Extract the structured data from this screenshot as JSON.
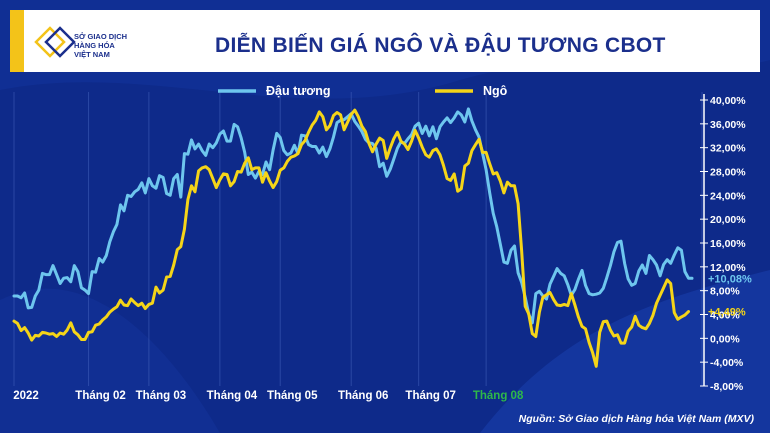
{
  "header": {
    "title": "DIỄN BIẾN GIÁ NGÔ VÀ ĐẬU TƯƠNG CBOT",
    "logo_text_1": "SỞ GIAO DỊCH",
    "logo_text_2": "HÀNG HÓA",
    "logo_text_3": "VIỆT NAM"
  },
  "source": "Nguồn: Sở Giao dịch Hàng hóa Việt Nam (MXV)",
  "colors": {
    "background": "#0e2a8a",
    "soybean": "#6ec6ee",
    "corn": "#f5d518",
    "accent_yellow": "#f3c319",
    "highlight_month": "#2eb84a"
  },
  "chart_data": {
    "type": "line",
    "title": "DIỄN BIẾN GIÁ NGÔ VÀ ĐẬU TƯƠNG CBOT",
    "legend_position": "top",
    "grid": "vertical",
    "ylim": [
      -8,
      40
    ],
    "y_ticks": [
      "40,00%",
      "36,00%",
      "32,00%",
      "28,00%",
      "24,00%",
      "20,00%",
      "16,00%",
      "12,00%",
      "8,00%",
      "4,00%",
      "0,00%",
      "-4,00%",
      "-8,00%"
    ],
    "x_labels": [
      "2022",
      "Tháng 02",
      "Tháng 03",
      "Tháng 04",
      "Tháng 05",
      "Tháng 06",
      "Tháng 07",
      "Tháng 08"
    ],
    "x_label_positions": [
      0,
      21,
      38,
      58,
      75,
      95,
      114,
      133
    ],
    "highlight_label": "Tháng 08",
    "end_labels": [
      {
        "series": "Đậu tương",
        "text": "+10,08%",
        "value": 10.08
      },
      {
        "series": "Ngô",
        "text": "+4,49%",
        "value": 4.49
      }
    ],
    "series": [
      {
        "name": "Đậu tương",
        "values": [
          7.1,
          7.1,
          6.8,
          7.6,
          5.1,
          5.2,
          7.1,
          8.1,
          10.9,
          10.7,
          10.7,
          12.2,
          10.7,
          9.2,
          10.1,
          10.2,
          9.5,
          12.2,
          11.2,
          8.5,
          8.1,
          7.5,
          11.2,
          11.1,
          13.4,
          12.8,
          13.9,
          16.2,
          17.9,
          19.1,
          22.4,
          21.4,
          24.0,
          23.8,
          24.6,
          25.0,
          26.1,
          24.4,
          26.8,
          25.6,
          25.2,
          27.3,
          27.0,
          24.3,
          24.0,
          26.8,
          27.5,
          23.7,
          31.0,
          30.9,
          33.3,
          31.8,
          32.6,
          31.5,
          30.7,
          32.6,
          32.0,
          32.8,
          34.3,
          34.8,
          33.1,
          33.1,
          35.9,
          35.5,
          33.6,
          31.2,
          27.5,
          27.9,
          26.9,
          28.0,
          27.5,
          29.6,
          28.3,
          31.6,
          34.4,
          33.7,
          31.5,
          30.8,
          31.1,
          32.4,
          31.0,
          34.1,
          34.0,
          32.5,
          32.2,
          32.2,
          31.1,
          32.1,
          30.5,
          31.8,
          33.8,
          36.2,
          36.6,
          36.7,
          37.2,
          37.7,
          36.4,
          35.6,
          34.7,
          33.4,
          32.8,
          32.7,
          31.9,
          28.8,
          29.4,
          27.2,
          28.4,
          30.1,
          31.9,
          33.0,
          32.7,
          33.5,
          34.2,
          35.6,
          36.1,
          34.4,
          35.6,
          34.0,
          35.5,
          33.5,
          35.5,
          36.3,
          37.0,
          36.2,
          37.0,
          38.0,
          37.5,
          36.3,
          38.5,
          36.5,
          35.0,
          33.8,
          31.0,
          28.3,
          24.4,
          21.0,
          18.7,
          15.8,
          12.8,
          12.6,
          14.8,
          15.5,
          11.0,
          9.4,
          6.9,
          4.1,
          2.6,
          7.5,
          7.9,
          7.1,
          6.6,
          9.1,
          10.4,
          11.7,
          10.9,
          10.5,
          9.0,
          7.2,
          8.2,
          9.9,
          11.4,
          8.9,
          7.5,
          7.3,
          7.4,
          7.6,
          8.4,
          10.2,
          12.2,
          14.5,
          16.1,
          16.3,
          12.6,
          10.0,
          8.9,
          9.2,
          11.3,
          12.3,
          10.9,
          13.9,
          13.2,
          12.3,
          10.5,
          12.4,
          13.2,
          12.6,
          14.0,
          15.2,
          14.8,
          11.2,
          10.1,
          10.08
        ]
      },
      {
        "name": "Ngô",
        "values": [
          2.9,
          2.5,
          1.3,
          1.8,
          0.9,
          -0.3,
          0.5,
          0.4,
          1.0,
          0.9,
          0.7,
          0.8,
          0.3,
          0.9,
          0.7,
          1.4,
          2.6,
          1.1,
          0.6,
          -0.2,
          -0.2,
          1.0,
          1.1,
          2.2,
          2.4,
          3.1,
          3.6,
          4.4,
          4.9,
          5.3,
          6.4,
          5.6,
          5.5,
          6.6,
          6.0,
          5.5,
          5.9,
          5.0,
          5.7,
          5.9,
          8.6,
          7.6,
          8.1,
          10.3,
          10.4,
          12.3,
          14.9,
          15.4,
          18.3,
          23.3,
          25.6,
          24.6,
          28.1,
          28.6,
          28.8,
          28.3,
          26.8,
          25.3,
          26.6,
          27.6,
          27.5,
          25.6,
          26.3,
          28.0,
          27.9,
          29.4,
          30.3,
          28.3,
          28.6,
          28.6,
          26.2,
          27.8,
          26.4,
          25.3,
          26.3,
          28.2,
          28.6,
          29.7,
          30.4,
          30.6,
          31.0,
          32.5,
          33.2,
          34.6,
          35.8,
          36.6,
          38.0,
          37.2,
          35.0,
          35.7,
          37.4,
          37.9,
          37.5,
          35.0,
          36.3,
          37.6,
          38.3,
          37.2,
          35.6,
          34.7,
          32.7,
          31.3,
          32.6,
          33.6,
          33.2,
          30.2,
          32.0,
          33.5,
          34.6,
          33.1,
          32.6,
          31.7,
          33.1,
          34.9,
          33.6,
          32.1,
          30.8,
          30.4,
          31.5,
          31.8,
          30.8,
          29.0,
          26.8,
          26.5,
          27.6,
          24.7,
          25.1,
          28.9,
          29.4,
          31.5,
          32.5,
          33.4,
          31.2,
          31.2,
          29.3,
          27.6,
          27.8,
          26.4,
          24.4,
          26.2,
          25.6,
          25.6,
          22.6,
          14.8,
          5.4,
          4.1,
          0.8,
          0.3,
          4.4,
          6.9,
          7.3,
          7.7,
          6.5,
          5.6,
          5.5,
          5.7,
          5.5,
          7.5,
          5.6,
          3.6,
          2.0,
          1.6,
          -0.7,
          -2.4,
          -4.7,
          1.0,
          2.8,
          2.9,
          1.4,
          0.4,
          0.6,
          -0.8,
          -0.8,
          1.2,
          1.9,
          3.7,
          2.2,
          1.8,
          1.6,
          2.5,
          3.9,
          5.9,
          7.2,
          8.5,
          9.8,
          9.2,
          4.3,
          3.2,
          3.6,
          3.9,
          4.49
        ]
      }
    ]
  }
}
